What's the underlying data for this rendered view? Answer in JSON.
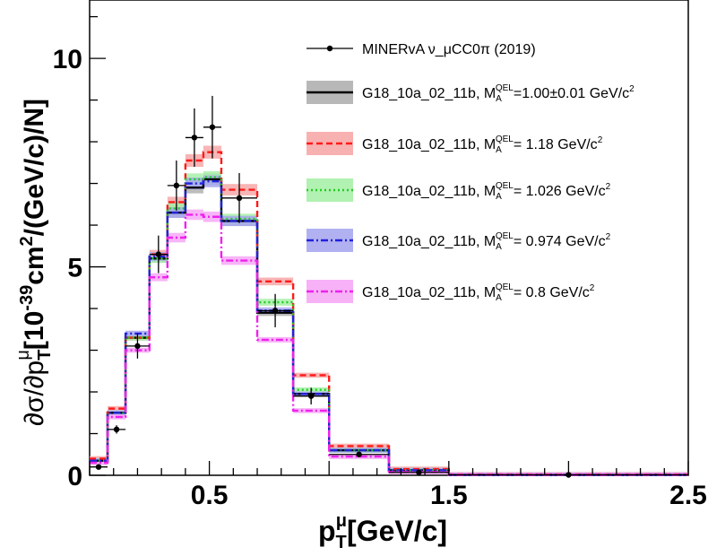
{
  "chart_data": {
    "type": "line",
    "xlabel": "p_T^μ[GeV/c]",
    "ylabel": "∂σ/∂p_T^μ[10^-39 cm^2/(GeV/c)/N]",
    "xlim": [
      0,
      2.5
    ],
    "ylim": [
      0,
      11.4
    ],
    "x_ticks": [
      0.5,
      1.5,
      2.5
    ],
    "y_ticks": [
      0,
      5,
      10
    ],
    "x_tick_labels": [
      "0.5",
      "1.5",
      "2.5"
    ],
    "y_tick_labels": [
      "0",
      "5",
      "10"
    ],
    "grid": false,
    "legend_position": "top-right",
    "bin_edges": [
      0.0,
      0.075,
      0.15,
      0.25,
      0.325,
      0.4,
      0.475,
      0.55,
      0.7,
      0.85,
      1.0,
      1.25,
      1.5,
      2.5
    ],
    "data_series": {
      "name": "MINERvA ν_μCC0π (2019)",
      "color": "#000000",
      "points": [
        {
          "x": 0.0375,
          "y": 0.2,
          "err": 0.04
        },
        {
          "x": 0.1125,
          "y": 1.1,
          "err": 0.1
        },
        {
          "x": 0.2,
          "y": 3.1,
          "err": 0.3
        },
        {
          "x": 0.2875,
          "y": 5.3,
          "err": 0.45
        },
        {
          "x": 0.3625,
          "y": 6.95,
          "err": 0.6
        },
        {
          "x": 0.4375,
          "y": 8.1,
          "err": 0.7
        },
        {
          "x": 0.5125,
          "y": 8.35,
          "err": 0.75
        },
        {
          "x": 0.625,
          "y": 6.65,
          "err": 0.6
        },
        {
          "x": 0.775,
          "y": 3.95,
          "err": 0.4
        },
        {
          "x": 0.925,
          "y": 1.9,
          "err": 0.2
        },
        {
          "x": 1.125,
          "y": 0.5,
          "err": 0.06
        },
        {
          "x": 1.375,
          "y": 0.07,
          "err": 0.02
        },
        {
          "x": 2.0,
          "y": 0.01,
          "err": 0.01
        }
      ]
    },
    "series": [
      {
        "name": "G18_10a_02_11b, M_A^QEL=1.00±0.01 GeV/c^2",
        "label_main": "G18_10a_02_11b, M",
        "label_value": "=1.00±0.01 GeV/c",
        "color": "#000000",
        "band": "#b0b0b0",
        "dash": "",
        "width": 2.4,
        "values": [
          0.35,
          1.5,
          3.3,
          5.2,
          6.3,
          6.9,
          7.1,
          6.1,
          3.9,
          1.95,
          0.6,
          0.12,
          0.01
        ]
      },
      {
        "name": "G18_10a_02_11b, M_A^QEL = 1.18 GeV/c^2",
        "label_main": "G18_10a_02_11b, M",
        "label_value": "= 1.18 GeV/c",
        "color": "#ff1a1a",
        "band": "#f7a8a8",
        "dash": "7,4",
        "width": 2.4,
        "values": [
          0.4,
          1.6,
          3.3,
          5.3,
          6.55,
          7.55,
          7.75,
          6.85,
          4.65,
          2.4,
          0.7,
          0.15,
          0.02
        ]
      },
      {
        "name": "G18_10a_02_11b, M_A^QEL = 1.026 GeV/c^2",
        "label_main": "G18_10a_02_11b, M",
        "label_value": "= 1.026 GeV/c",
        "color": "#22cc22",
        "band": "#a8f0a8",
        "dash": "2,3",
        "width": 2.4,
        "values": [
          0.35,
          1.5,
          3.3,
          5.2,
          6.4,
          7.1,
          7.15,
          6.15,
          4.15,
          2.05,
          0.6,
          0.12,
          0.01
        ]
      },
      {
        "name": "G18_10a_02_11b, M_A^QEL = 0.974 GeV/c^2",
        "label_main": "G18_10a_02_11b, M",
        "label_value": "= 0.974 GeV/c",
        "color": "#2222dd",
        "band": "#a8a8f0",
        "dash": "8,3,2,3",
        "width": 2.4,
        "values": [
          0.35,
          1.5,
          3.4,
          5.25,
          6.3,
          7.0,
          7.05,
          6.1,
          3.95,
          1.95,
          0.6,
          0.12,
          0.01
        ]
      },
      {
        "name": "G18_10a_02_11b, M_A^QEL = 0.8 GeV/c^2",
        "label_main": "G18_10a_02_11b, M",
        "label_value": "= 0.8 GeV/c",
        "color": "#ee22ee",
        "band": "#f6a8f6",
        "dash": "8,3,2,3",
        "width": 2.4,
        "values": [
          0.3,
          1.4,
          3.0,
          4.75,
          5.7,
          6.25,
          6.2,
          5.15,
          3.25,
          1.55,
          0.45,
          0.08,
          0.01
        ]
      }
    ],
    "legend_sub_A": "A",
    "legend_sup_QEL": "QEL",
    "legend_sup_2": "2"
  }
}
